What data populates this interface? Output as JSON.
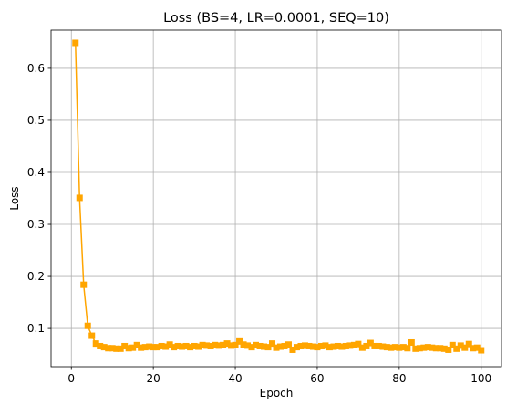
{
  "chart_data": {
    "type": "line",
    "title": "Loss (BS=4, LR=0.0001, SEQ=10)",
    "xlabel": "Epoch",
    "ylabel": "Loss",
    "xlim": [
      -4.95,
      104.95
    ],
    "ylim": [
      0.0265,
      0.6735
    ],
    "xticks": [
      0,
      20,
      40,
      60,
      80,
      100
    ],
    "yticks": [
      0.1,
      0.2,
      0.3,
      0.4,
      0.5,
      0.6
    ],
    "grid": true,
    "legend": "none",
    "marker": "square",
    "color": "#FFA500",
    "series": [
      {
        "x": [
          1,
          2,
          3,
          4,
          5,
          6,
          7,
          8,
          9,
          10,
          11,
          12,
          13,
          14,
          15,
          16,
          17,
          18,
          19,
          20,
          21,
          22,
          23,
          24,
          25,
          26,
          27,
          28,
          29,
          30,
          31,
          32,
          33,
          34,
          35,
          36,
          37,
          38,
          39,
          40,
          41,
          42,
          43,
          44,
          45,
          46,
          47,
          48,
          49,
          50,
          51,
          52,
          53,
          54,
          55,
          56,
          57,
          58,
          59,
          60,
          61,
          62,
          63,
          64,
          65,
          66,
          67,
          68,
          69,
          70,
          71,
          72,
          73,
          74,
          75,
          76,
          77,
          78,
          79,
          80,
          81,
          82,
          83,
          84,
          85,
          86,
          87,
          88,
          89,
          90,
          91,
          92,
          93,
          94,
          95,
          96,
          97,
          98,
          99,
          100
        ],
        "values": [
          0.649,
          0.351,
          0.184,
          0.105,
          0.086,
          0.071,
          0.066,
          0.064,
          0.062,
          0.062,
          0.061,
          0.061,
          0.066,
          0.062,
          0.063,
          0.068,
          0.063,
          0.064,
          0.065,
          0.064,
          0.064,
          0.066,
          0.065,
          0.069,
          0.064,
          0.066,
          0.065,
          0.066,
          0.064,
          0.066,
          0.065,
          0.068,
          0.067,
          0.066,
          0.068,
          0.067,
          0.068,
          0.071,
          0.067,
          0.068,
          0.075,
          0.069,
          0.067,
          0.064,
          0.068,
          0.066,
          0.065,
          0.064,
          0.071,
          0.063,
          0.065,
          0.066,
          0.069,
          0.059,
          0.064,
          0.066,
          0.067,
          0.066,
          0.065,
          0.064,
          0.066,
          0.067,
          0.064,
          0.065,
          0.066,
          0.065,
          0.066,
          0.067,
          0.068,
          0.07,
          0.063,
          0.066,
          0.072,
          0.066,
          0.066,
          0.065,
          0.064,
          0.063,
          0.064,
          0.063,
          0.064,
          0.062,
          0.073,
          0.061,
          0.062,
          0.063,
          0.064,
          0.063,
          0.062,
          0.062,
          0.061,
          0.059,
          0.068,
          0.061,
          0.067,
          0.063,
          0.07,
          0.062,
          0.063,
          0.058
        ]
      }
    ]
  }
}
